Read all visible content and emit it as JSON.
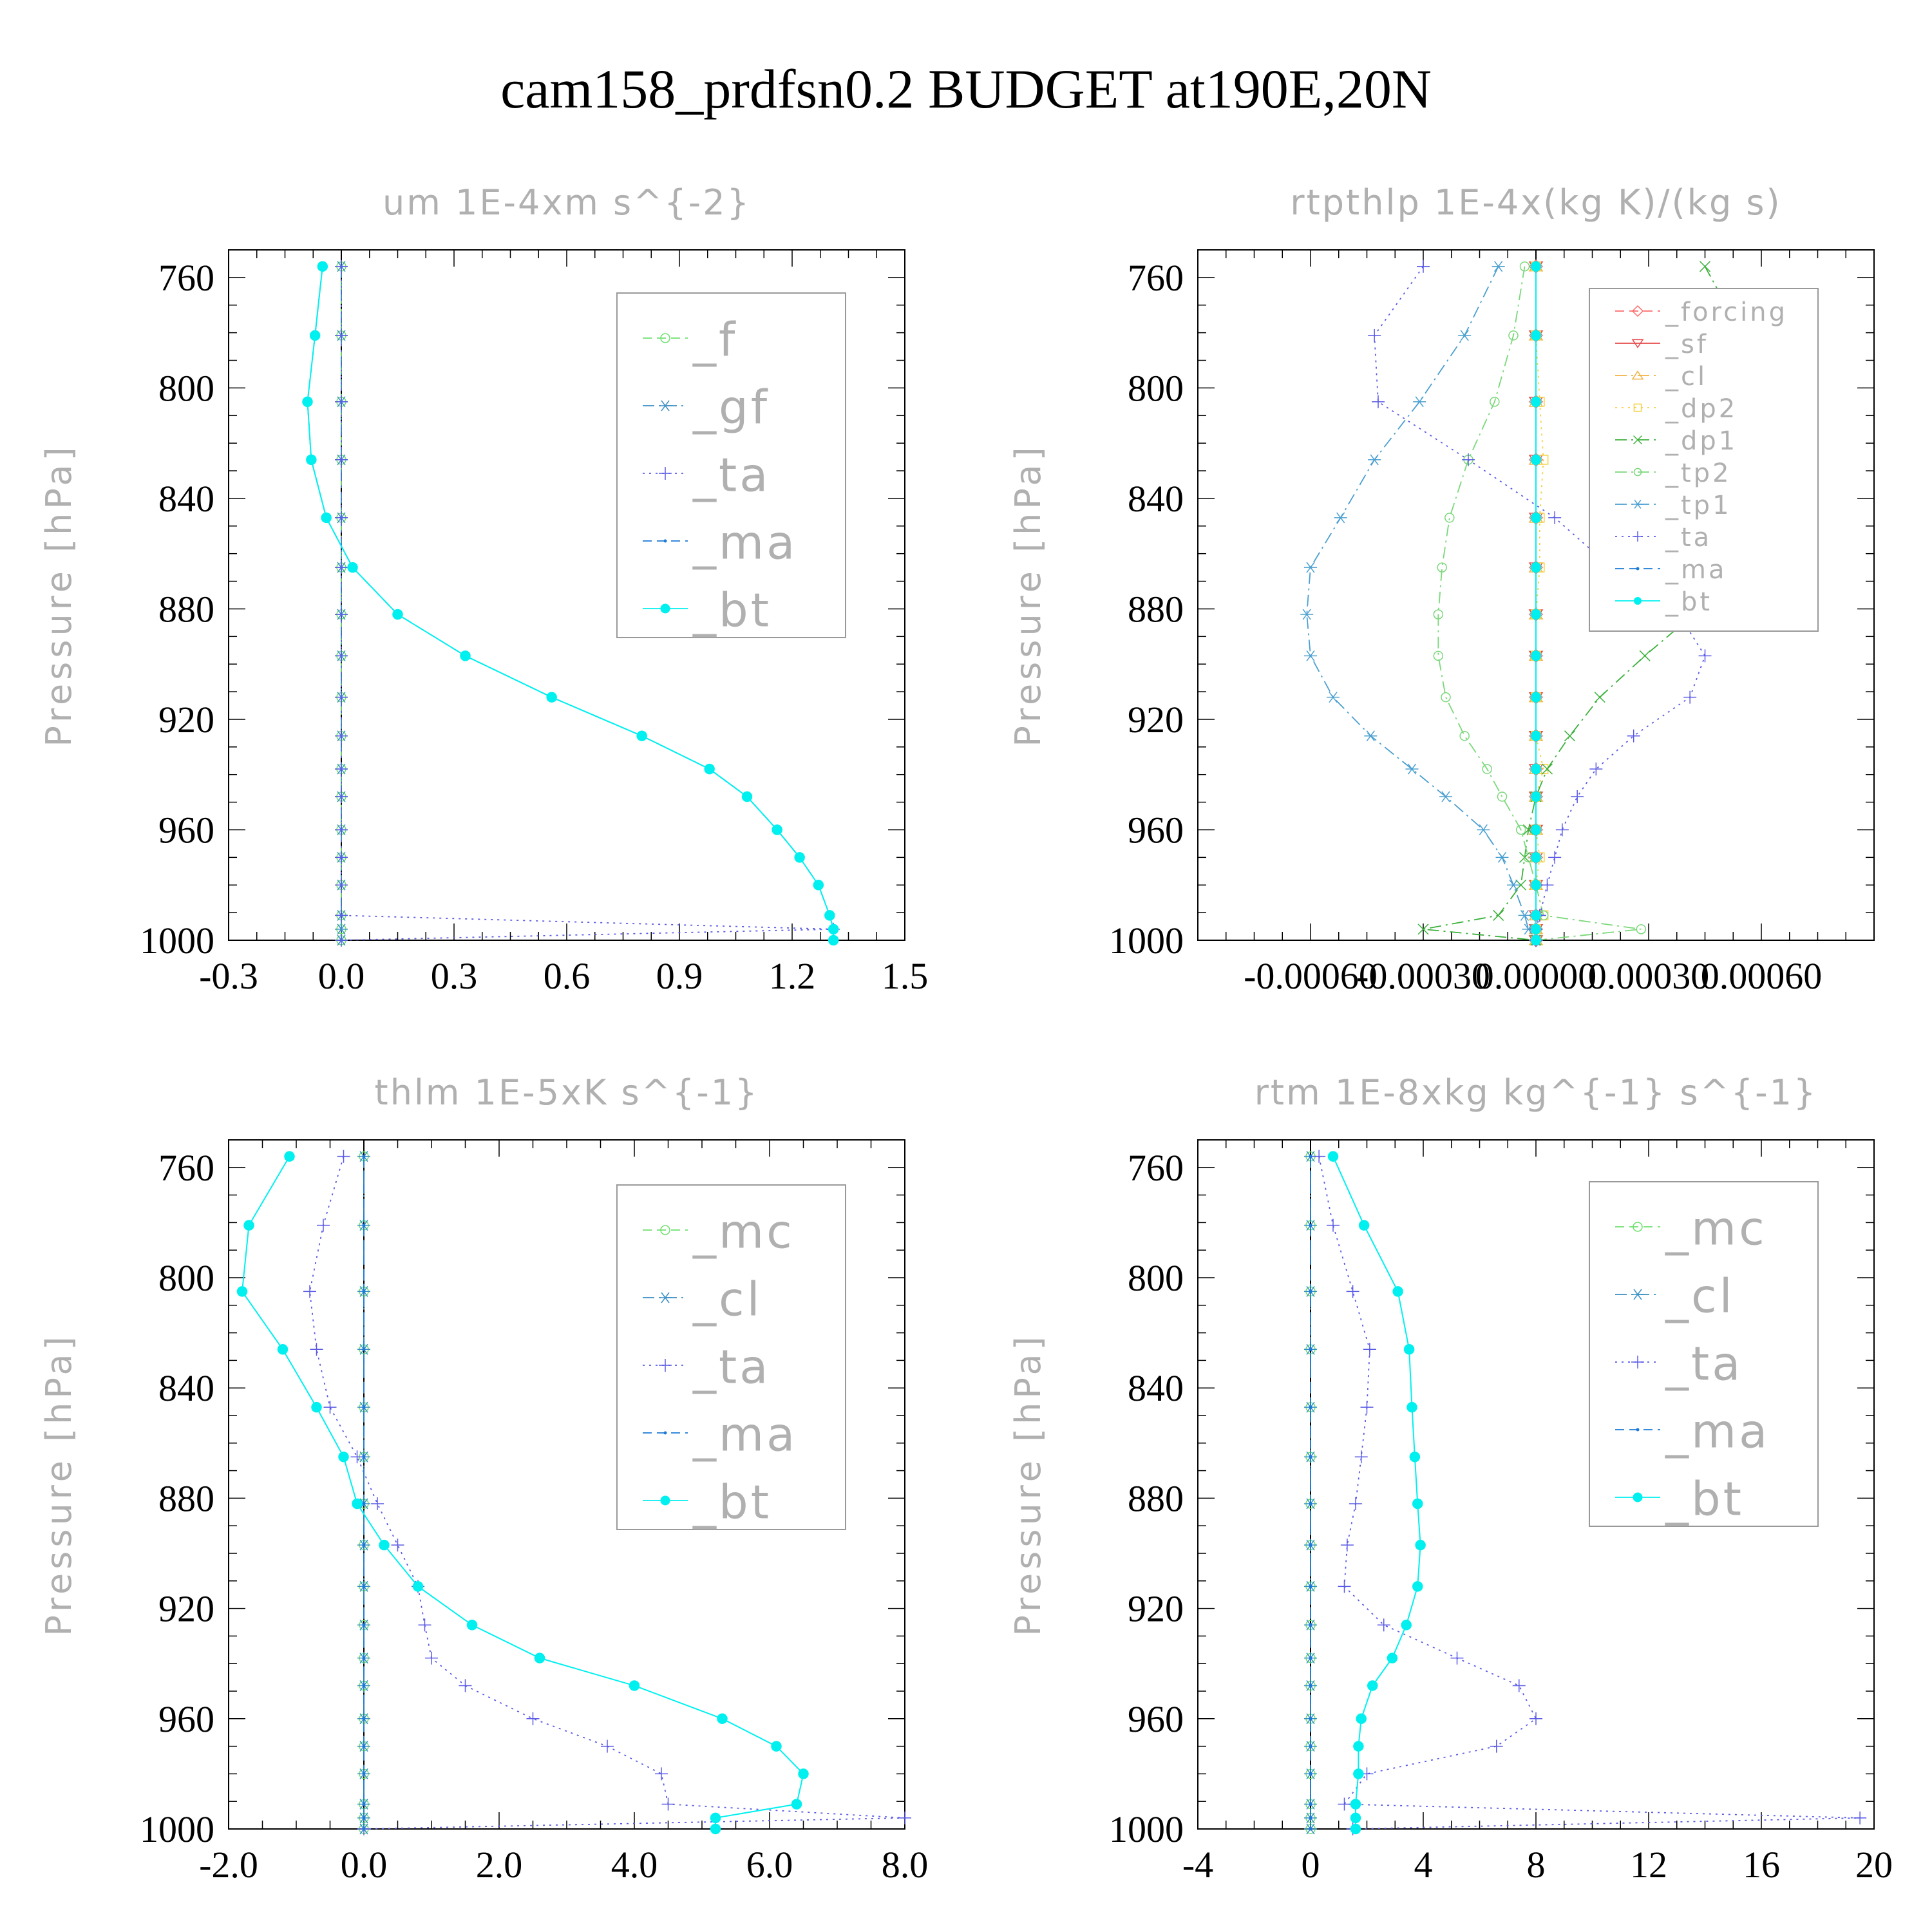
{
  "suptitle": "cam158_prdfsn0.2  BUDGET at190E,20N",
  "colors": {
    "f": "#6fe06f",
    "gf": "#3a8fc4",
    "ta": "#5a5ae6",
    "ma": "#1a7ad8",
    "bt": "#00f0f0",
    "forcing": "#ff6a6a",
    "sf": "#e64a4a",
    "cl_o": "#f0b040",
    "dp2": "#f5d040",
    "dp1": "#3ab03a",
    "tp2": "#7ad87a",
    "tp1": "#4a9fd0",
    "mc": "#6fe06f",
    "cl": "#3a8fc4",
    "axis": "#000000",
    "title": "#b0b0b0"
  },
  "chart_data": [
    {
      "type": "line",
      "title": "um  1E-4xm s^{-2}",
      "ylabel": "Pressure [hPa]",
      "xlabel": "",
      "xlim": [
        -0.3,
        1.5
      ],
      "ylim": [
        1000,
        750
      ],
      "xticks": [
        "-0.3",
        "0.0",
        "0.3",
        "0.6",
        "0.9",
        "1.2",
        "1.5"
      ],
      "yticks": [
        "760",
        "800",
        "840",
        "880",
        "920",
        "960",
        "1000"
      ],
      "legend_position": "top-right",
      "pressure": [
        756,
        781,
        805,
        826,
        847,
        865,
        882,
        897,
        912,
        926,
        938,
        948,
        960,
        970,
        980,
        991,
        996,
        1000
      ],
      "series": [
        {
          "name": "_f",
          "key": "f",
          "marker": "circle-open",
          "dash": "dashed",
          "values": [
            0,
            0,
            0,
            0,
            0,
            0,
            0,
            0,
            0,
            0,
            0,
            0,
            0,
            0,
            0,
            0,
            0,
            0
          ]
        },
        {
          "name": "_gf",
          "key": "gf",
          "marker": "asterisk",
          "dash": "dashdot",
          "values": [
            0,
            0,
            0,
            0,
            0,
            0,
            0,
            0,
            0,
            0,
            0,
            0,
            0,
            0,
            0,
            0,
            0,
            0
          ]
        },
        {
          "name": "_ta",
          "key": "ta",
          "marker": "plus",
          "dash": "dotted",
          "values": [
            0,
            0,
            0,
            0,
            0,
            0,
            0,
            0,
            0,
            0,
            0,
            0,
            0,
            0,
            0,
            0,
            1.31,
            0
          ]
        },
        {
          "name": "_ma",
          "key": "ma",
          "marker": "dot",
          "dash": "dashed",
          "values": [
            -0.05,
            -0.07,
            -0.09,
            -0.08,
            -0.04,
            0.03,
            0.15,
            0.33,
            0.56,
            0.8,
            0.98,
            1.08,
            1.16,
            1.22,
            1.27,
            1.3,
            1.31,
            1.31
          ]
        },
        {
          "name": "_bt",
          "key": "bt",
          "marker": "filled",
          "dash": "solid",
          "values": [
            -0.05,
            -0.07,
            -0.09,
            -0.08,
            -0.04,
            0.03,
            0.15,
            0.33,
            0.56,
            0.8,
            0.98,
            1.08,
            1.16,
            1.22,
            1.27,
            1.3,
            1.31,
            1.31
          ]
        }
      ]
    },
    {
      "type": "line",
      "title": "rtpthlp  1E-4x(kg K)/(kg s)",
      "ylabel": "Pressure [hPa]",
      "xlabel": "",
      "xlim": [
        -0.0009,
        0.0009
      ],
      "ylim": [
        1000,
        750
      ],
      "xticks": [
        "-0.00060",
        "-0.00030",
        "0.00000",
        "0.00030",
        "0.00060"
      ],
      "yticks": [
        "760",
        "800",
        "840",
        "880",
        "920",
        "960",
        "1000"
      ],
      "legend_position": "top-right",
      "pressure": [
        756,
        781,
        805,
        826,
        847,
        865,
        882,
        897,
        912,
        926,
        938,
        948,
        960,
        970,
        980,
        991,
        996,
        1000
      ],
      "series": [
        {
          "name": "_forcing",
          "key": "forcing",
          "marker": "diamond-open",
          "dash": "dashed",
          "values": [
            0,
            0,
            0,
            0,
            0,
            0,
            0,
            0,
            0,
            0,
            0,
            0,
            0,
            0,
            0,
            0,
            0,
            0
          ]
        },
        {
          "name": "_sf",
          "key": "sf",
          "marker": "triangle-down",
          "dash": "solid",
          "values": [
            0,
            0,
            0,
            0,
            0,
            0,
            0,
            0,
            0,
            0,
            0,
            0,
            0,
            0,
            0,
            0,
            0,
            0
          ]
        },
        {
          "name": "_cl",
          "key": "cl_o",
          "marker": "triangle-up",
          "dash": "dashdot",
          "values": [
            0,
            0,
            0,
            0,
            0,
            0,
            0,
            0,
            0,
            0,
            0,
            0,
            0,
            0,
            0,
            0,
            0,
            0
          ]
        },
        {
          "name": "_dp2",
          "key": "dp2",
          "marker": "square-open",
          "dash": "dotted",
          "values": [
            0,
            0,
            1e-05,
            2e-05,
            1e-05,
            1e-05,
            0,
            0,
            0,
            0,
            2e-05,
            0,
            0,
            1e-05,
            0,
            2e-05,
            0,
            0
          ]
        },
        {
          "name": "_dp1",
          "key": "dp1",
          "marker": "cross",
          "dash": "dashdot",
          "values": [
            0.00045,
            0.00055,
            0.00065,
            0.0007,
            0.00063,
            0.00052,
            0.00042,
            0.00029,
            0.00017,
            9e-05,
            3e-05,
            0,
            -2e-05,
            -3e-05,
            -4e-05,
            -0.0001,
            -0.0003,
            0
          ]
        },
        {
          "name": "_tp2",
          "key": "tp2",
          "marker": "circle-open",
          "dash": "dashdot",
          "values": [
            -3e-05,
            -6e-05,
            -0.00011,
            -0.00018,
            -0.00023,
            -0.00025,
            -0.00026,
            -0.00026,
            -0.00024,
            -0.00019,
            -0.00013,
            -9e-05,
            -4e-05,
            -2e-05,
            0,
            2e-05,
            0.00028,
            0
          ]
        },
        {
          "name": "_tp1",
          "key": "tp1",
          "marker": "asterisk",
          "dash": "dashdot",
          "values": [
            -0.0001,
            -0.00019,
            -0.00031,
            -0.00043,
            -0.00052,
            -0.0006,
            -0.00061,
            -0.0006,
            -0.00054,
            -0.00044,
            -0.00033,
            -0.00024,
            -0.00014,
            -9e-05,
            -6e-05,
            -3e-05,
            -2e-05,
            0
          ]
        },
        {
          "name": "_ta",
          "key": "ta",
          "marker": "plus",
          "dash": "dotted",
          "values": [
            -0.0003,
            -0.00043,
            -0.00042,
            -0.00018,
            5e-05,
            0.0002,
            0.00038,
            0.00045,
            0.00041,
            0.00026,
            0.00016,
            0.00011,
            7e-05,
            5e-05,
            3e-05,
            1e-05,
            0,
            0
          ]
        },
        {
          "name": "_ma",
          "key": "ma",
          "marker": "dot",
          "dash": "dashed",
          "values": [
            0,
            0,
            0,
            0,
            0,
            0,
            0,
            0,
            0,
            0,
            0,
            0,
            0,
            0,
            0,
            0,
            0,
            0
          ]
        },
        {
          "name": "_bt",
          "key": "bt",
          "marker": "filled",
          "dash": "solid",
          "values": [
            0,
            0,
            0,
            0,
            0,
            0,
            0,
            0,
            0,
            0,
            0,
            0,
            0,
            0,
            0,
            0,
            0,
            0
          ]
        }
      ]
    },
    {
      "type": "line",
      "title": "thlm  1E-5xK s^{-1}",
      "ylabel": "Pressure [hPa]",
      "xlabel": "",
      "xlim": [
        -2.0,
        8.0
      ],
      "ylim": [
        1000,
        750
      ],
      "xticks": [
        "-2.0",
        "0.0",
        "2.0",
        "4.0",
        "6.0",
        "8.0"
      ],
      "yticks": [
        "760",
        "800",
        "840",
        "880",
        "920",
        "960",
        "1000"
      ],
      "legend_position": "top-right",
      "pressure": [
        756,
        781,
        805,
        826,
        847,
        865,
        882,
        897,
        912,
        926,
        938,
        948,
        960,
        970,
        980,
        991,
        996,
        1000
      ],
      "series": [
        {
          "name": "_mc",
          "key": "mc",
          "marker": "circle-open",
          "dash": "dashed",
          "values": [
            0,
            0,
            0,
            0,
            0,
            0,
            0,
            0,
            0,
            0,
            0,
            0,
            0,
            0,
            0,
            0,
            0,
            0
          ]
        },
        {
          "name": "_cl",
          "key": "cl",
          "marker": "asterisk",
          "dash": "dashdot",
          "values": [
            0,
            0,
            0,
            0,
            0,
            0,
            0,
            0,
            0,
            0,
            0,
            0,
            0,
            0,
            0,
            0,
            0,
            0
          ]
        },
        {
          "name": "_ta",
          "key": "ta",
          "marker": "plus",
          "dash": "dotted",
          "values": [
            -0.3,
            -0.6,
            -0.8,
            -0.7,
            -0.5,
            -0.1,
            0.2,
            0.5,
            0.8,
            0.9,
            1.0,
            1.5,
            2.5,
            3.6,
            4.4,
            4.5,
            8.0,
            0
          ]
        },
        {
          "name": "_ma",
          "key": "ma",
          "marker": "dot",
          "dash": "dashed",
          "values": [
            0,
            0,
            0,
            0,
            0,
            0,
            0,
            0,
            0,
            0,
            0,
            0,
            0,
            0,
            0,
            0,
            0,
            0
          ]
        },
        {
          "name": "_bt",
          "key": "bt",
          "marker": "filled",
          "dash": "solid",
          "values": [
            -1.1,
            -1.7,
            -1.8,
            -1.2,
            -0.7,
            -0.3,
            -0.1,
            0.3,
            0.8,
            1.6,
            2.6,
            4.0,
            5.3,
            6.1,
            6.5,
            6.4,
            5.2,
            5.2
          ]
        }
      ]
    },
    {
      "type": "line",
      "title": "rtm  1E-8xkg kg^{-1} s^{-1}",
      "ylabel": "Pressure [hPa]",
      "xlabel": "",
      "xlim": [
        -4,
        20
      ],
      "ylim": [
        1000,
        750
      ],
      "xticks": [
        "-4",
        "0",
        "4",
        "8",
        "12",
        "16",
        "20"
      ],
      "yticks": [
        "760",
        "800",
        "840",
        "880",
        "920",
        "960",
        "1000"
      ],
      "legend_position": "top-right",
      "pressure": [
        756,
        781,
        805,
        826,
        847,
        865,
        882,
        897,
        912,
        926,
        938,
        948,
        960,
        970,
        980,
        991,
        996,
        1000
      ],
      "series": [
        {
          "name": "_mc",
          "key": "mc",
          "marker": "circle-open",
          "dash": "dashed",
          "values": [
            0,
            0,
            0,
            0,
            0,
            0,
            0,
            0,
            0,
            0,
            0,
            0,
            0,
            0,
            0,
            0,
            0,
            0
          ]
        },
        {
          "name": "_cl",
          "key": "cl",
          "marker": "asterisk",
          "dash": "dashdot",
          "values": [
            0,
            0,
            0,
            0,
            0,
            0,
            0,
            0,
            0,
            0,
            0,
            0,
            0,
            0,
            0,
            0,
            0,
            0
          ]
        },
        {
          "name": "_ta",
          "key": "ta",
          "marker": "plus",
          "dash": "dotted",
          "values": [
            0.3,
            0.8,
            1.5,
            2.1,
            2.0,
            1.8,
            1.6,
            1.3,
            1.2,
            2.6,
            5.2,
            7.4,
            8.0,
            6.6,
            2.0,
            1.2,
            19.5,
            1.5
          ]
        },
        {
          "name": "_ma",
          "key": "ma",
          "marker": "dot",
          "dash": "dashed",
          "values": [
            0,
            0,
            0,
            0,
            0,
            0,
            0,
            0,
            0,
            0,
            0,
            0,
            0,
            0,
            0,
            0,
            0,
            0
          ]
        },
        {
          "name": "_bt",
          "key": "bt",
          "marker": "filled",
          "dash": "solid",
          "values": [
            0.8,
            1.9,
            3.1,
            3.5,
            3.6,
            3.7,
            3.8,
            3.9,
            3.8,
            3.4,
            2.9,
            2.2,
            1.8,
            1.7,
            1.7,
            1.6,
            1.6,
            1.6
          ]
        }
      ]
    }
  ]
}
